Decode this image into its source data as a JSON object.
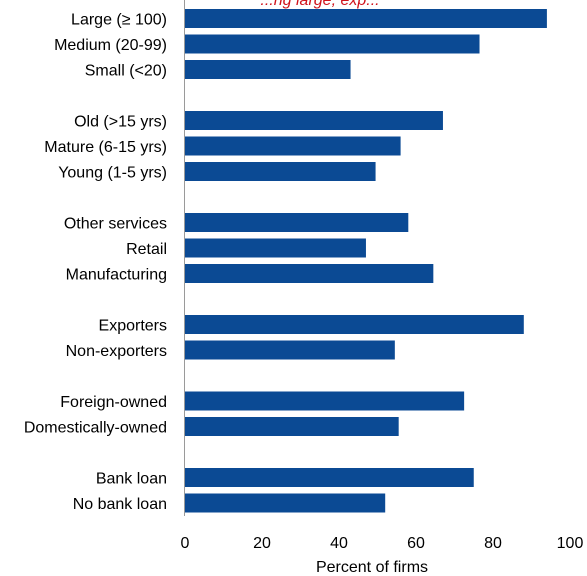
{
  "chart_data": {
    "type": "bar",
    "orientation": "horizontal",
    "top_note": "...ng large, exp...",
    "xlabel": "Percent of firms",
    "xlim": [
      0,
      100
    ],
    "x_ticks": [
      "0",
      "20",
      "40",
      "60",
      "80",
      "100"
    ],
    "bar_color": "#0B4A94",
    "note_color": "#D0121B",
    "grid": false,
    "groups": [
      {
        "bars": [
          {
            "label": "Large (≥ 100)",
            "value": 94
          },
          {
            "label": "Medium (20-99)",
            "value": 76.5
          },
          {
            "label": "Small (<20)",
            "value": 43
          }
        ]
      },
      {
        "bars": [
          {
            "label": "Old (>15 yrs)",
            "value": 67
          },
          {
            "label": "Mature (6-15 yrs)",
            "value": 56
          },
          {
            "label": "Young (1-5 yrs)",
            "value": 49.5
          }
        ]
      },
      {
        "bars": [
          {
            "label": "Other services",
            "value": 58
          },
          {
            "label": "Retail",
            "value": 47
          },
          {
            "label": "Manufacturing",
            "value": 64.5
          }
        ]
      },
      {
        "bars": [
          {
            "label": "Exporters",
            "value": 88
          },
          {
            "label": "Non-exporters",
            "value": 54.5
          }
        ]
      },
      {
        "bars": [
          {
            "label": "Foreign-owned",
            "value": 72.5
          },
          {
            "label": "Domestically-owned",
            "value": 55.5
          }
        ]
      },
      {
        "bars": [
          {
            "label": "Bank loan",
            "value": 75
          },
          {
            "label": "No bank loan",
            "value": 52
          }
        ]
      }
    ]
  }
}
